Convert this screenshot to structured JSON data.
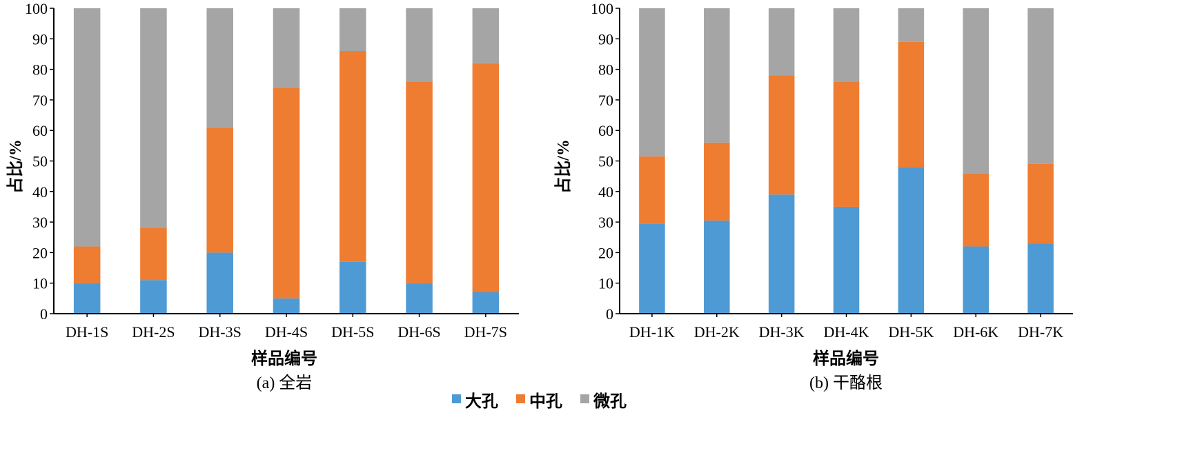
{
  "colors": {
    "macro": "#4e9ad4",
    "meso": "#ee7c31",
    "micro": "#a5a5a5"
  },
  "legend": [
    {
      "label": "大孔",
      "color": "#4e9ad4"
    },
    {
      "label": "中孔",
      "color": "#ee7c31"
    },
    {
      "label": "微孔",
      "color": "#a5a5a5"
    }
  ],
  "chart_data": [
    {
      "type": "bar",
      "stacked": true,
      "caption": "(a) 全岩",
      "xlabel": "样品编号",
      "ylabel": "占比/%",
      "ylim": [
        0,
        100
      ],
      "yticks": [
        "0",
        "10",
        "20",
        "30",
        "40",
        "50",
        "60",
        "70",
        "80",
        "90",
        "100"
      ],
      "categories": [
        "DH-1S",
        "DH-2S",
        "DH-3S",
        "DH-4S",
        "DH-5S",
        "DH-6S",
        "DH-7S"
      ],
      "series": [
        {
          "name": "大孔",
          "values": [
            10,
            11,
            20,
            5,
            17,
            10,
            7
          ]
        },
        {
          "name": "中孔",
          "values": [
            12,
            17,
            41,
            69,
            69,
            66,
            75
          ]
        },
        {
          "name": "微孔",
          "values": [
            78,
            72,
            39,
            26,
            14,
            24,
            18
          ]
        }
      ]
    },
    {
      "type": "bar",
      "stacked": true,
      "caption": "(b) 干酪根",
      "xlabel": "样品编号",
      "ylabel": "占比/%",
      "ylim": [
        0,
        100
      ],
      "yticks": [
        "0",
        "10",
        "20",
        "30",
        "40",
        "50",
        "60",
        "70",
        "80",
        "90",
        "100"
      ],
      "categories": [
        "DH-1K",
        "DH-2K",
        "DH-3K",
        "DH-4K",
        "DH-5K",
        "DH-6K",
        "DH-7K"
      ],
      "series": [
        {
          "name": "大孔",
          "values": [
            29.5,
            30.5,
            39,
            35,
            48,
            22,
            23
          ]
        },
        {
          "name": "中孔",
          "values": [
            22,
            25.5,
            39,
            41,
            41,
            24,
            26
          ]
        },
        {
          "name": "微孔",
          "values": [
            48.5,
            44,
            22,
            24,
            11,
            54,
            51
          ]
        }
      ]
    }
  ]
}
